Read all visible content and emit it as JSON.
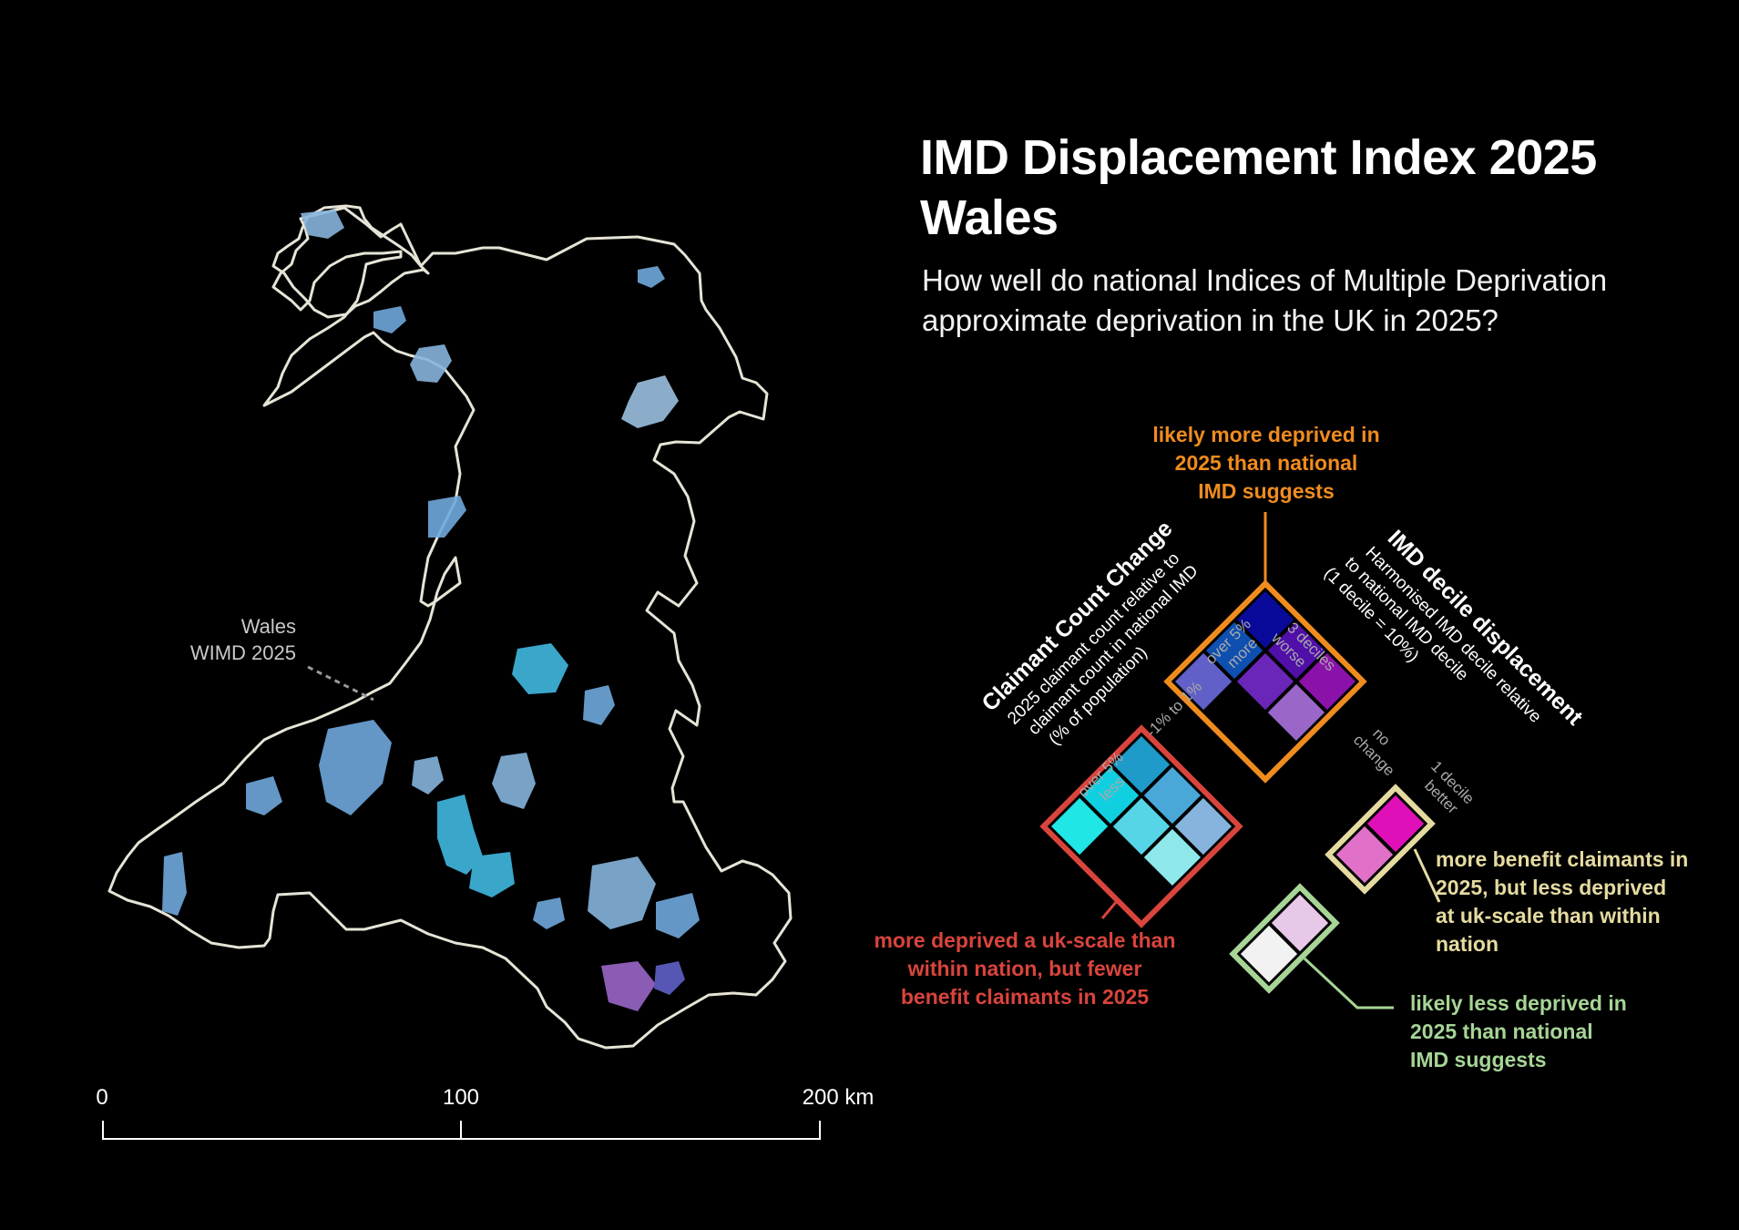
{
  "title_line1": "IMD Displacement Index 2025",
  "title_line2": "Wales",
  "subtitle_line1": "How well do national Indices of Multiple Deprivation",
  "subtitle_line2": "approximate deprivation in the UK in 2025?",
  "map": {
    "region_label_line1": "Wales",
    "region_label_line2": "WIMD 2025",
    "outline_color": "#e6e4d6"
  },
  "scale_bar": {
    "ticks": [
      "0",
      "100",
      "200 km"
    ]
  },
  "legend": {
    "axis_left_title": "Claimant Count Change",
    "axis_left_desc": [
      "2025 claimant count relative to",
      "claimant count in national IMD",
      "(% of population)"
    ],
    "axis_left_ticks": [
      [
        "over 5%",
        "less"
      ],
      [
        "-1% to 1%"
      ],
      [
        "over 5%",
        "more"
      ]
    ],
    "axis_right_title": "IMD decile displacement",
    "axis_right_desc": [
      "Harmonised IMD decile relative",
      "to national IMD decile",
      "(1 decile = 10%)"
    ],
    "axis_right_ticks": [
      [
        "3 deciles",
        "worse"
      ],
      [
        "no",
        "change"
      ],
      [
        "1 decile",
        "better"
      ]
    ],
    "colors": {
      "top": [
        "#0a0a9a",
        "#4f0fa8",
        "#0e4fb0",
        "#6a26b8",
        "#8a12aa",
        "#6060c8",
        "#9a66c8"
      ],
      "left": [
        "#1e9bc8",
        "#10cfe0",
        "#4aa8d8",
        "#20e6e6",
        "#55d5e5",
        "#86b4dc",
        "#8ee8ea"
      ],
      "right": [
        "#e010b8",
        "#e070c8"
      ],
      "bottom": [
        "#e8c8e8",
        "#f2f2f2"
      ],
      "frame_top": "#f08c1e",
      "frame_left": "#d9443c",
      "frame_right": "#e5dba0",
      "frame_bottom": "#a6d596"
    }
  },
  "annotations": {
    "top": [
      "likely more deprived in",
      "2025 than national",
      "IMD suggests"
    ],
    "left": [
      "more deprived a uk-scale than",
      "within nation, but fewer",
      "benefit claimants in 2025"
    ],
    "right": [
      "more benefit claimants in",
      "2025, but less deprived",
      "at uk-scale than within",
      "nation"
    ],
    "bottom": [
      "likely less deprived in",
      "2025 than national",
      "IMD suggests"
    ]
  }
}
